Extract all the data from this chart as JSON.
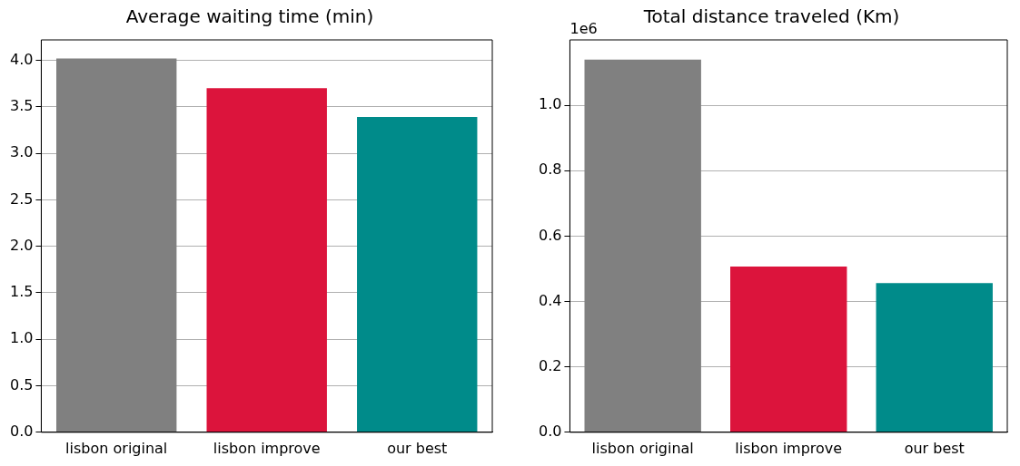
{
  "chart_data": [
    {
      "type": "bar",
      "title": "Average waiting time (min)",
      "categories": [
        "lisbon original",
        "lisbon improve",
        "our best"
      ],
      "values": [
        4.02,
        3.7,
        3.39
      ],
      "colors": [
        "#808080",
        "#dc143c",
        "#008b8a"
      ],
      "ylim": [
        0,
        4.22
      ],
      "yticks": [
        {
          "value": 0,
          "label": "0.0"
        },
        {
          "value": 0.5,
          "label": "0.5"
        },
        {
          "value": 1,
          "label": "1.0"
        },
        {
          "value": 1.5,
          "label": "1.5"
        },
        {
          "value": 2,
          "label": "2.0"
        },
        {
          "value": 2.5,
          "label": "2.5"
        },
        {
          "value": 3,
          "label": "3.0"
        },
        {
          "value": 3.5,
          "label": "3.5"
        },
        {
          "value": 4,
          "label": "4.0"
        }
      ],
      "grid": "y"
    },
    {
      "type": "bar",
      "title": "Total distance traveled (Km)",
      "categories": [
        "lisbon original",
        "lisbon improve",
        "our best"
      ],
      "values": [
        1.14,
        0.507,
        0.456
      ],
      "colors": [
        "#808080",
        "#dc143c",
        "#008b8a"
      ],
      "ylim": [
        0,
        1.2
      ],
      "yticks": [
        {
          "value": 0,
          "label": "0.0"
        },
        0.2,
        0.4,
        0.6,
        0.8,
        {
          "value": 1,
          "label": "1.0"
        }
      ],
      "grid": "y",
      "annotations": [
        "1e6"
      ]
    }
  ]
}
